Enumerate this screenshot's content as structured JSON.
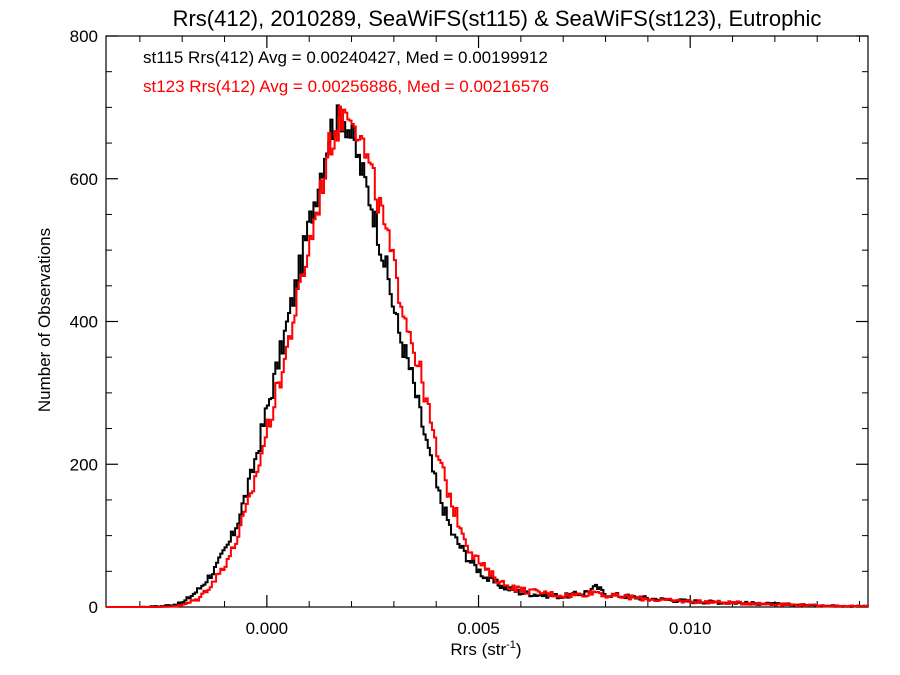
{
  "chart_data": {
    "type": "line",
    "subtype": "step-histogram",
    "title": "Rrs(412), 2010289, SeaWiFS(st115) & SeaWiFS(st123), Eutrophic",
    "xlabel": "Rrs (str",
    "xlabel_sup": "-1",
    "xlabel_close": ")",
    "ylabel": "Number of Observations",
    "xlim": [
      -0.0038,
      0.0142
    ],
    "ylim": [
      0,
      800
    ],
    "x_ticks": [
      0.0,
      0.005,
      0.01
    ],
    "x_tick_labels": [
      "0.000",
      "0.005",
      "0.010"
    ],
    "y_ticks": [
      0,
      200,
      400,
      600,
      800
    ],
    "y_tick_labels": [
      "0",
      "200",
      "400",
      "600",
      "800"
    ],
    "grid": false,
    "legend_position": "top-left",
    "series": [
      {
        "label": "st115 Rrs(412) Avg = 0.00240427, Med = 0.00199912",
        "color": "#000000",
        "x": [
          -0.0038,
          -0.003,
          -0.0025,
          -0.002,
          -0.0016,
          -0.0012,
          -0.0008,
          -0.0004,
          0.0,
          0.0004,
          0.0008,
          0.0012,
          0.0015,
          0.0018,
          0.002,
          0.0022,
          0.0025,
          0.0028,
          0.0031,
          0.0034,
          0.0037,
          0.004,
          0.0044,
          0.0048,
          0.0052,
          0.0056,
          0.006,
          0.0065,
          0.007,
          0.0075,
          0.0078,
          0.008,
          0.0085,
          0.009,
          0.0095,
          0.01,
          0.011,
          0.012,
          0.013,
          0.0142
        ],
        "y": [
          0,
          0,
          1,
          5,
          25,
          55,
          100,
          175,
          275,
          375,
          480,
          590,
          670,
          690,
          660,
          620,
          560,
          480,
          390,
          330,
          250,
          170,
          100,
          65,
          40,
          28,
          20,
          17,
          15,
          20,
          28,
          18,
          15,
          12,
          10,
          8,
          6,
          4,
          2,
          1
        ]
      },
      {
        "label": "st123 Rrs(412) Avg = 0.00256886, Med = 0.00216576",
        "color": "#ff0000",
        "x": [
          -0.0038,
          -0.003,
          -0.0025,
          -0.002,
          -0.0016,
          -0.0012,
          -0.0008,
          -0.0004,
          0.0,
          0.0004,
          0.0008,
          0.0012,
          0.0015,
          0.0018,
          0.002,
          0.0022,
          0.0025,
          0.0028,
          0.0031,
          0.0034,
          0.0037,
          0.004,
          0.0044,
          0.0048,
          0.0052,
          0.0056,
          0.006,
          0.0065,
          0.007,
          0.0075,
          0.0078,
          0.008,
          0.0085,
          0.009,
          0.0095,
          0.01,
          0.011,
          0.012,
          0.013,
          0.0142
        ],
        "y": [
          0,
          0,
          0,
          2,
          12,
          40,
          80,
          150,
          245,
          340,
          450,
          560,
          650,
          690,
          700,
          660,
          600,
          530,
          450,
          380,
          310,
          220,
          140,
          80,
          50,
          32,
          24,
          20,
          16,
          18,
          22,
          16,
          14,
          11,
          9,
          8,
          6,
          4,
          2,
          1
        ]
      }
    ]
  }
}
